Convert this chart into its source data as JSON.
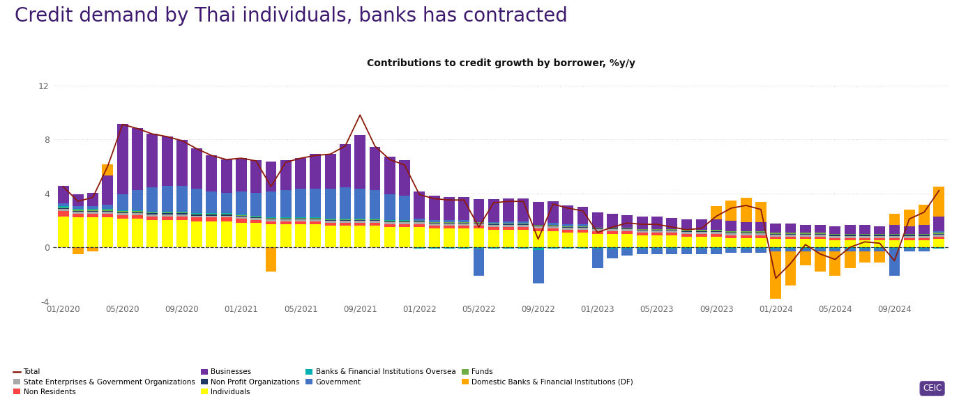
{
  "title": "Credit demand by Thai individuals, banks has contracted",
  "subtitle": "Contributions to credit growth by borrower, %y/y",
  "title_color": "#3d1a6e",
  "title_fontsize": 20,
  "subtitle_fontsize": 10,
  "background_color": "#ffffff",
  "ylim": [
    -4,
    13
  ],
  "yticks": [
    -4,
    0,
    4,
    8,
    12
  ],
  "ytick_labels": [
    "-4",
    "0",
    "4",
    "8",
    "12"
  ],
  "grid_color": "#cccccc",
  "dashed_zero_color": "#333333",
  "bar_width": 0.75,
  "xtick_labels": [
    "01/2020",
    "05/2020",
    "09/2020",
    "01/2021",
    "05/2021",
    "09/2021",
    "01/2022",
    "05/2022",
    "09/2022",
    "01/2023",
    "05/2023",
    "09/2023",
    "01/2024",
    "05/2024",
    "09/2024"
  ],
  "xtick_positions": [
    0,
    4,
    8,
    12,
    16,
    20,
    24,
    28,
    32,
    36,
    40,
    44,
    48,
    52,
    56
  ],
  "n_bars": 60,
  "series_order": [
    "Individuals",
    "Non Residents",
    "State Enterprises & Government Organizations",
    "Non Profit Organizations",
    "Funds",
    "Banks & Financial Institutions Oversea",
    "Government",
    "Businesses",
    "Domestic Banks & Financial Institutions (DF)"
  ],
  "series": {
    "Individuals": {
      "color": "#ffff00",
      "values": [
        2.3,
        2.2,
        2.2,
        2.2,
        2.1,
        2.1,
        2.0,
        2.0,
        2.0,
        1.9,
        1.9,
        1.9,
        1.8,
        1.8,
        1.7,
        1.7,
        1.7,
        1.7,
        1.6,
        1.6,
        1.6,
        1.6,
        1.5,
        1.5,
        1.5,
        1.4,
        1.4,
        1.4,
        1.4,
        1.3,
        1.3,
        1.3,
        1.2,
        1.2,
        1.1,
        1.1,
        1.0,
        1.0,
        1.0,
        0.9,
        0.9,
        0.9,
        0.8,
        0.8,
        0.8,
        0.7,
        0.7,
        0.7,
        0.6,
        0.6,
        0.6,
        0.6,
        0.5,
        0.5,
        0.5,
        0.5,
        0.5,
        0.5,
        0.5,
        0.6
      ]
    },
    "Non Residents": {
      "color": "#ff4444",
      "values": [
        0.4,
        0.3,
        0.3,
        0.3,
        0.3,
        0.3,
        0.3,
        0.3,
        0.3,
        0.3,
        0.3,
        0.3,
        0.3,
        0.2,
        0.2,
        0.2,
        0.2,
        0.2,
        0.2,
        0.2,
        0.2,
        0.2,
        0.2,
        0.2,
        0.2,
        0.2,
        0.2,
        0.2,
        0.2,
        0.2,
        0.2,
        0.2,
        0.2,
        0.2,
        0.2,
        0.2,
        0.2,
        0.2,
        0.2,
        0.2,
        0.2,
        0.2,
        0.2,
        0.2,
        0.2,
        0.2,
        0.2,
        0.2,
        0.2,
        0.2,
        0.2,
        0.2,
        0.2,
        0.2,
        0.2,
        0.2,
        0.2,
        0.2,
        0.2,
        0.2
      ]
    },
    "State Enterprises & Government Organizations": {
      "color": "#aaaaaa",
      "values": [
        0.15,
        0.15,
        0.15,
        0.15,
        0.15,
        0.15,
        0.15,
        0.15,
        0.15,
        0.15,
        0.15,
        0.15,
        0.15,
        0.15,
        0.15,
        0.15,
        0.15,
        0.15,
        0.15,
        0.15,
        0.15,
        0.15,
        0.15,
        0.15,
        0.15,
        0.15,
        0.15,
        0.15,
        0.15,
        0.15,
        0.15,
        0.15,
        0.15,
        0.15,
        0.15,
        0.15,
        0.15,
        0.15,
        0.15,
        0.15,
        0.15,
        0.15,
        0.15,
        0.15,
        0.15,
        0.15,
        0.15,
        0.15,
        0.15,
        0.15,
        0.15,
        0.15,
        0.15,
        0.15,
        0.15,
        0.15,
        0.15,
        0.15,
        0.15,
        0.15
      ]
    },
    "Non Profit Organizations": {
      "color": "#1f3864",
      "values": [
        0.06,
        0.06,
        0.06,
        0.06,
        0.06,
        0.06,
        0.06,
        0.06,
        0.06,
        0.06,
        0.06,
        0.06,
        0.06,
        0.06,
        0.06,
        0.06,
        0.06,
        0.06,
        0.06,
        0.06,
        0.06,
        0.06,
        0.06,
        0.06,
        0.06,
        0.06,
        0.06,
        0.06,
        0.06,
        0.06,
        0.06,
        0.06,
        0.06,
        0.06,
        0.06,
        0.06,
        0.06,
        0.06,
        0.06,
        0.06,
        0.06,
        0.06,
        0.06,
        0.06,
        0.06,
        0.06,
        0.06,
        0.06,
        0.06,
        0.06,
        0.06,
        0.06,
        0.06,
        0.06,
        0.06,
        0.06,
        0.06,
        0.06,
        0.06,
        0.06
      ]
    },
    "Funds": {
      "color": "#70ad47",
      "values": [
        0.06,
        0.06,
        0.06,
        0.06,
        0.06,
        0.06,
        0.06,
        0.06,
        0.06,
        0.06,
        0.06,
        0.06,
        0.06,
        0.06,
        0.06,
        0.06,
        0.06,
        0.06,
        0.06,
        0.06,
        0.06,
        0.06,
        0.06,
        0.06,
        0.06,
        0.06,
        0.06,
        0.06,
        0.06,
        0.06,
        0.06,
        0.06,
        0.06,
        0.06,
        0.06,
        0.06,
        0.06,
        0.06,
        0.06,
        0.06,
        0.06,
        0.06,
        0.06,
        0.06,
        0.06,
        0.06,
        0.06,
        0.06,
        0.06,
        0.06,
        0.06,
        0.06,
        0.06,
        0.06,
        0.06,
        0.06,
        0.06,
        0.06,
        0.06,
        0.06
      ]
    },
    "Banks & Financial Institutions Oversea": {
      "color": "#00b0b0",
      "values": [
        0.06,
        0.06,
        0.06,
        0.06,
        0.06,
        0.06,
        0.06,
        0.06,
        0.06,
        0.06,
        0.06,
        0.06,
        0.06,
        0.06,
        0.06,
        0.06,
        0.06,
        0.06,
        0.06,
        0.06,
        0.06,
        0.06,
        0.06,
        0.06,
        -0.12,
        -0.12,
        -0.12,
        -0.12,
        -0.12,
        -0.12,
        -0.12,
        -0.12,
        -0.2,
        -0.12,
        -0.12,
        -0.12,
        -0.12,
        -0.12,
        -0.12,
        -0.12,
        -0.12,
        -0.12,
        -0.12,
        -0.12,
        -0.12,
        -0.12,
        -0.12,
        -0.12,
        -0.12,
        -0.12,
        -0.12,
        -0.12,
        -0.12,
        -0.12,
        -0.12,
        -0.12,
        -0.12,
        -0.12,
        -0.12,
        -0.12
      ]
    },
    "Government": {
      "color": "#4472c4",
      "values": [
        0.2,
        0.2,
        0.2,
        0.3,
        1.2,
        1.5,
        1.8,
        1.9,
        1.9,
        1.8,
        1.6,
        1.5,
        1.7,
        1.7,
        1.9,
        2.0,
        2.1,
        2.1,
        2.2,
        2.3,
        2.2,
        2.1,
        1.9,
        1.8,
        0.15,
        0.15,
        0.15,
        0.15,
        -2.0,
        0.1,
        0.15,
        0.15,
        -2.5,
        0.15,
        0.15,
        0.15,
        -1.4,
        -0.7,
        -0.5,
        -0.4,
        -0.4,
        -0.4,
        -0.4,
        -0.4,
        -0.4,
        -0.3,
        -0.3,
        -0.3,
        -0.2,
        -0.2,
        -0.2,
        -0.2,
        -0.2,
        -0.2,
        -0.2,
        -0.2,
        -2.0,
        -0.2,
        -0.2,
        0.1
      ]
    },
    "Businesses": {
      "color": "#7030a0",
      "values": [
        1.3,
        0.9,
        1.0,
        2.2,
        5.2,
        4.6,
        4.0,
        3.7,
        3.4,
        3.0,
        2.7,
        2.5,
        2.5,
        2.4,
        2.2,
        2.2,
        2.3,
        2.6,
        2.6,
        3.2,
        4.0,
        3.2,
        2.8,
        2.6,
        2.0,
        1.8,
        1.7,
        1.7,
        1.7,
        1.7,
        1.7,
        1.7,
        1.7,
        1.6,
        1.4,
        1.3,
        1.1,
        1.0,
        0.9,
        0.9,
        0.9,
        0.8,
        0.8,
        0.8,
        0.8,
        0.8,
        0.7,
        0.7,
        0.7,
        0.7,
        0.6,
        0.6,
        0.6,
        0.7,
        0.7,
        0.6,
        0.7,
        0.6,
        0.7,
        1.1
      ]
    },
    "Domestic Banks & Financial Institutions (DF)": {
      "color": "#ffa500",
      "values": [
        0.0,
        -0.5,
        -0.3,
        0.8,
        0.0,
        0.0,
        0.0,
        0.0,
        0.0,
        0.0,
        0.0,
        0.0,
        0.0,
        0.0,
        -1.8,
        0.0,
        0.0,
        0.0,
        0.0,
        0.0,
        0.0,
        0.0,
        0.0,
        0.0,
        0.0,
        0.0,
        0.0,
        0.0,
        0.0,
        0.0,
        0.0,
        0.0,
        0.0,
        0.0,
        0.0,
        0.0,
        0.0,
        0.0,
        0.0,
        0.0,
        0.0,
        0.0,
        0.0,
        0.0,
        1.0,
        1.5,
        1.8,
        1.5,
        -3.5,
        -2.5,
        -1.0,
        -1.5,
        -1.8,
        -1.2,
        -0.8,
        -0.8,
        0.8,
        1.2,
        1.5,
        2.2
      ]
    }
  },
  "total_line": [
    4.5,
    3.4,
    3.7,
    6.0,
    9.1,
    8.8,
    8.4,
    8.2,
    7.9,
    7.3,
    6.8,
    6.5,
    6.6,
    6.4,
    4.5,
    6.3,
    6.6,
    6.8,
    6.9,
    7.5,
    9.8,
    7.5,
    6.5,
    6.1,
    3.9,
    3.6,
    3.5,
    3.5,
    1.5,
    3.3,
    3.4,
    3.4,
    0.6,
    3.2,
    2.9,
    2.7,
    1.1,
    1.5,
    1.8,
    1.7,
    1.7,
    1.5,
    1.3,
    1.4,
    2.3,
    2.9,
    3.1,
    2.8,
    -2.3,
    -1.2,
    0.2,
    -0.5,
    -0.9,
    0.0,
    0.4,
    0.3,
    -1.0,
    2.1,
    2.6,
    4.2
  ],
  "legend_items": [
    {
      "label": "Total",
      "color": "#8b1a0a",
      "type": "line"
    },
    {
      "label": "State Enterprises & Government Organizations",
      "color": "#aaaaaa",
      "type": "bar"
    },
    {
      "label": "Non Residents",
      "color": "#ff4444",
      "type": "bar"
    },
    {
      "label": "Businesses",
      "color": "#7030a0",
      "type": "bar"
    },
    {
      "label": "Non Profit Organizations",
      "color": "#1f3864",
      "type": "bar"
    },
    {
      "label": "Individuals",
      "color": "#ffff00",
      "type": "bar"
    },
    {
      "label": "Banks & Financial Institutions Oversea",
      "color": "#00b0b0",
      "type": "bar"
    },
    {
      "label": "Government",
      "color": "#4472c4",
      "type": "bar"
    },
    {
      "label": "Funds",
      "color": "#70ad47",
      "type": "bar"
    },
    {
      "label": "Domestic Banks & Financial Institutions (DF)",
      "color": "#ffa500",
      "type": "bar"
    }
  ]
}
